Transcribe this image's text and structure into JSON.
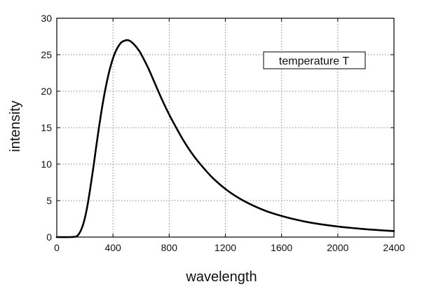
{
  "chart_data": {
    "type": "line",
    "title": "",
    "xlabel": "wavelength",
    "ylabel": "intensity",
    "xlim": [
      0,
      2400
    ],
    "ylim": [
      0,
      30
    ],
    "x_ticks": [
      0,
      400,
      800,
      1200,
      1600,
      2000,
      2400
    ],
    "y_ticks": [
      0,
      5,
      10,
      15,
      20,
      25,
      30
    ],
    "grid": true,
    "grid_style": "dotted",
    "legend_position": "top-right",
    "legend_text": "temperature T",
    "line_color": "#000000",
    "series": [
      {
        "x": [
          0,
          100,
          140,
          160,
          180,
          200,
          220,
          240,
          260,
          280,
          300,
          320,
          340,
          360,
          380,
          400,
          420,
          440,
          460,
          480,
          500,
          520,
          540,
          560,
          580,
          600,
          650,
          700,
          750,
          800,
          850,
          900,
          950,
          1000,
          1100,
          1200,
          1300,
          1400,
          1500,
          1600,
          1700,
          1800,
          1900,
          2000,
          2100,
          2200,
          2300,
          2400
        ],
        "y": [
          0,
          0,
          0.1,
          0.5,
          1.3,
          2.6,
          4.5,
          6.9,
          9.5,
          12.3,
          15.0,
          17.5,
          19.7,
          21.6,
          23.2,
          24.5,
          25.5,
          26.2,
          26.7,
          26.9,
          27.0,
          26.9,
          26.6,
          26.2,
          25.7,
          25.1,
          23.2,
          21.0,
          18.8,
          16.8,
          15.0,
          13.3,
          11.8,
          10.5,
          8.3,
          6.6,
          5.3,
          4.3,
          3.5,
          2.9,
          2.4,
          2.0,
          1.7,
          1.45,
          1.25,
          1.08,
          0.94,
          0.82
        ]
      }
    ]
  }
}
